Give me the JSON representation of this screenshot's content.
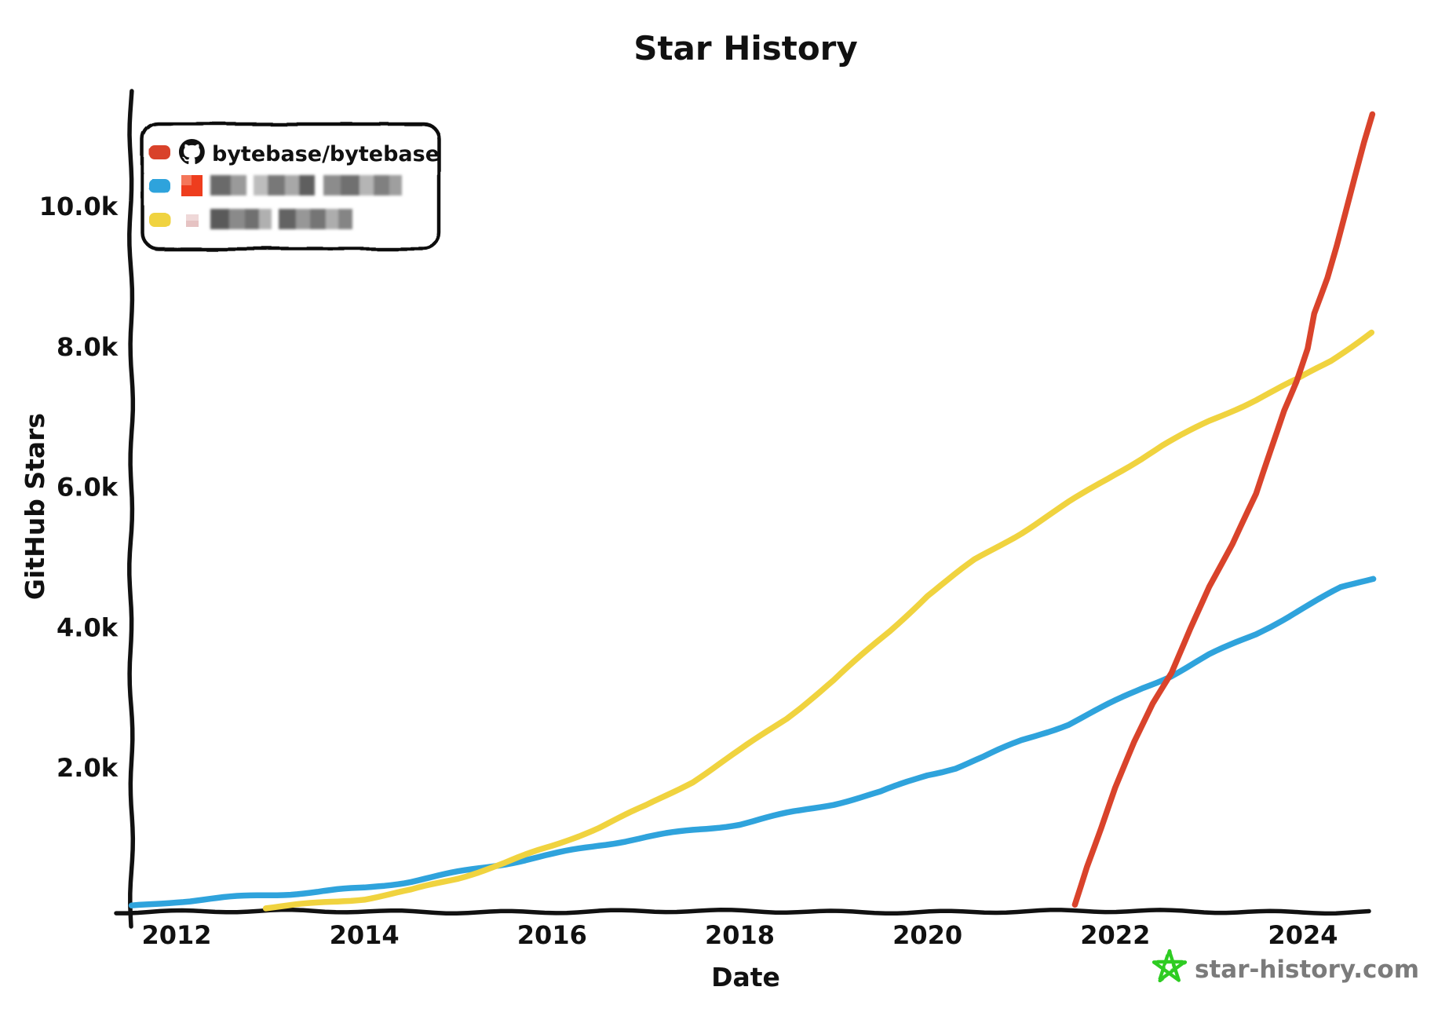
{
  "title": "Star History",
  "watermark": {
    "label": "star-history.com",
    "star_color": "#2ecc22"
  },
  "legend": {
    "items": [
      {
        "label": "bytebase/bytebase",
        "swatch_color": "#d9432b",
        "icon": "github-octocat",
        "redacted": false
      },
      {
        "label": "",
        "swatch_color": "#2fa3dc",
        "icon": "avatar-redacted-red",
        "redacted": true
      },
      {
        "label": "",
        "swatch_color": "#f0d33f",
        "icon": "avatar-redacted-pink",
        "redacted": true
      }
    ]
  },
  "chart_data": {
    "type": "line",
    "title": "Star History",
    "xlabel": "Date",
    "ylabel": "GitHub Stars",
    "x_ticks": [
      2012,
      2014,
      2016,
      2018,
      2020,
      2022,
      2024
    ],
    "x_tick_labels": [
      "2012",
      "2014",
      "2016",
      "2018",
      "2020",
      "2022",
      "2024"
    ],
    "y_ticks_k": [
      2,
      4,
      6,
      8,
      10
    ],
    "y_tick_labels": [
      "2.0k",
      "4.0k",
      "6.0k",
      "8.0k",
      "10.0k"
    ],
    "xlim": [
      2011.5,
      2024.85
    ],
    "ylim_k": [
      0,
      11.6
    ],
    "grid": false,
    "legend_position": "top-left",
    "units": "GitHub stars (thousands)",
    "series": [
      {
        "name": "bytebase/bytebase",
        "color": "#d9432b",
        "points_year_kstars": [
          [
            2021.57,
            0.05
          ],
          [
            2021.7,
            0.6
          ],
          [
            2021.85,
            1.15
          ],
          [
            2022,
            1.72
          ],
          [
            2022.2,
            2.35
          ],
          [
            2022.4,
            2.9
          ],
          [
            2022.6,
            3.35
          ],
          [
            2022.8,
            4.0
          ],
          [
            2023,
            4.6
          ],
          [
            2023.25,
            5.2
          ],
          [
            2023.5,
            5.9
          ],
          [
            2023.65,
            6.5
          ],
          [
            2023.8,
            7.1
          ],
          [
            2023.93,
            7.52
          ],
          [
            2024.05,
            8.0
          ],
          [
            2024.12,
            8.5
          ],
          [
            2024.26,
            9.0
          ],
          [
            2024.36,
            9.45
          ],
          [
            2024.45,
            9.9
          ],
          [
            2024.55,
            10.4
          ],
          [
            2024.65,
            10.9
          ],
          [
            2024.74,
            11.3
          ]
        ]
      },
      {
        "name": "redacted-repo-blue",
        "color": "#2fa3dc",
        "points_year_kstars": [
          [
            2011.52,
            0.02
          ],
          [
            2012,
            0.09
          ],
          [
            2012.5,
            0.14
          ],
          [
            2013,
            0.19
          ],
          [
            2013.5,
            0.24
          ],
          [
            2014,
            0.3
          ],
          [
            2014.5,
            0.4
          ],
          [
            2015,
            0.52
          ],
          [
            2015.5,
            0.64
          ],
          [
            2016,
            0.76
          ],
          [
            2016.5,
            0.89
          ],
          [
            2017,
            1.01
          ],
          [
            2017.5,
            1.11
          ],
          [
            2018,
            1.21
          ],
          [
            2018.5,
            1.36
          ],
          [
            2019,
            1.5
          ],
          [
            2019.5,
            1.66
          ],
          [
            2020,
            1.9
          ],
          [
            2020.3,
            2.0
          ],
          [
            2020.6,
            2.15
          ],
          [
            2021,
            2.38
          ],
          [
            2021.5,
            2.62
          ],
          [
            2022,
            2.95
          ],
          [
            2022.3,
            3.15
          ],
          [
            2022.6,
            3.33
          ],
          [
            2023,
            3.62
          ],
          [
            2023.5,
            3.92
          ],
          [
            2024,
            4.28
          ],
          [
            2024.4,
            4.56
          ],
          [
            2024.75,
            4.7
          ]
        ]
      },
      {
        "name": "redacted-repo-yellow",
        "color": "#f0d33f",
        "points_year_kstars": [
          [
            2012.95,
            0.02
          ],
          [
            2013.5,
            0.08
          ],
          [
            2014,
            0.15
          ],
          [
            2014.5,
            0.26
          ],
          [
            2015,
            0.43
          ],
          [
            2015.5,
            0.64
          ],
          [
            2016,
            0.88
          ],
          [
            2016.5,
            1.15
          ],
          [
            2017,
            1.46
          ],
          [
            2017.5,
            1.82
          ],
          [
            2018,
            2.26
          ],
          [
            2018.5,
            2.72
          ],
          [
            2019,
            3.25
          ],
          [
            2019.3,
            3.6
          ],
          [
            2019.6,
            3.95
          ],
          [
            2020,
            4.45
          ],
          [
            2020.5,
            4.95
          ],
          [
            2021,
            5.35
          ],
          [
            2021.5,
            5.78
          ],
          [
            2022,
            6.2
          ],
          [
            2022.5,
            6.6
          ],
          [
            2023,
            6.95
          ],
          [
            2023.5,
            7.25
          ],
          [
            2023.93,
            7.52
          ],
          [
            2024.3,
            7.8
          ],
          [
            2024.73,
            8.2
          ]
        ]
      }
    ]
  }
}
